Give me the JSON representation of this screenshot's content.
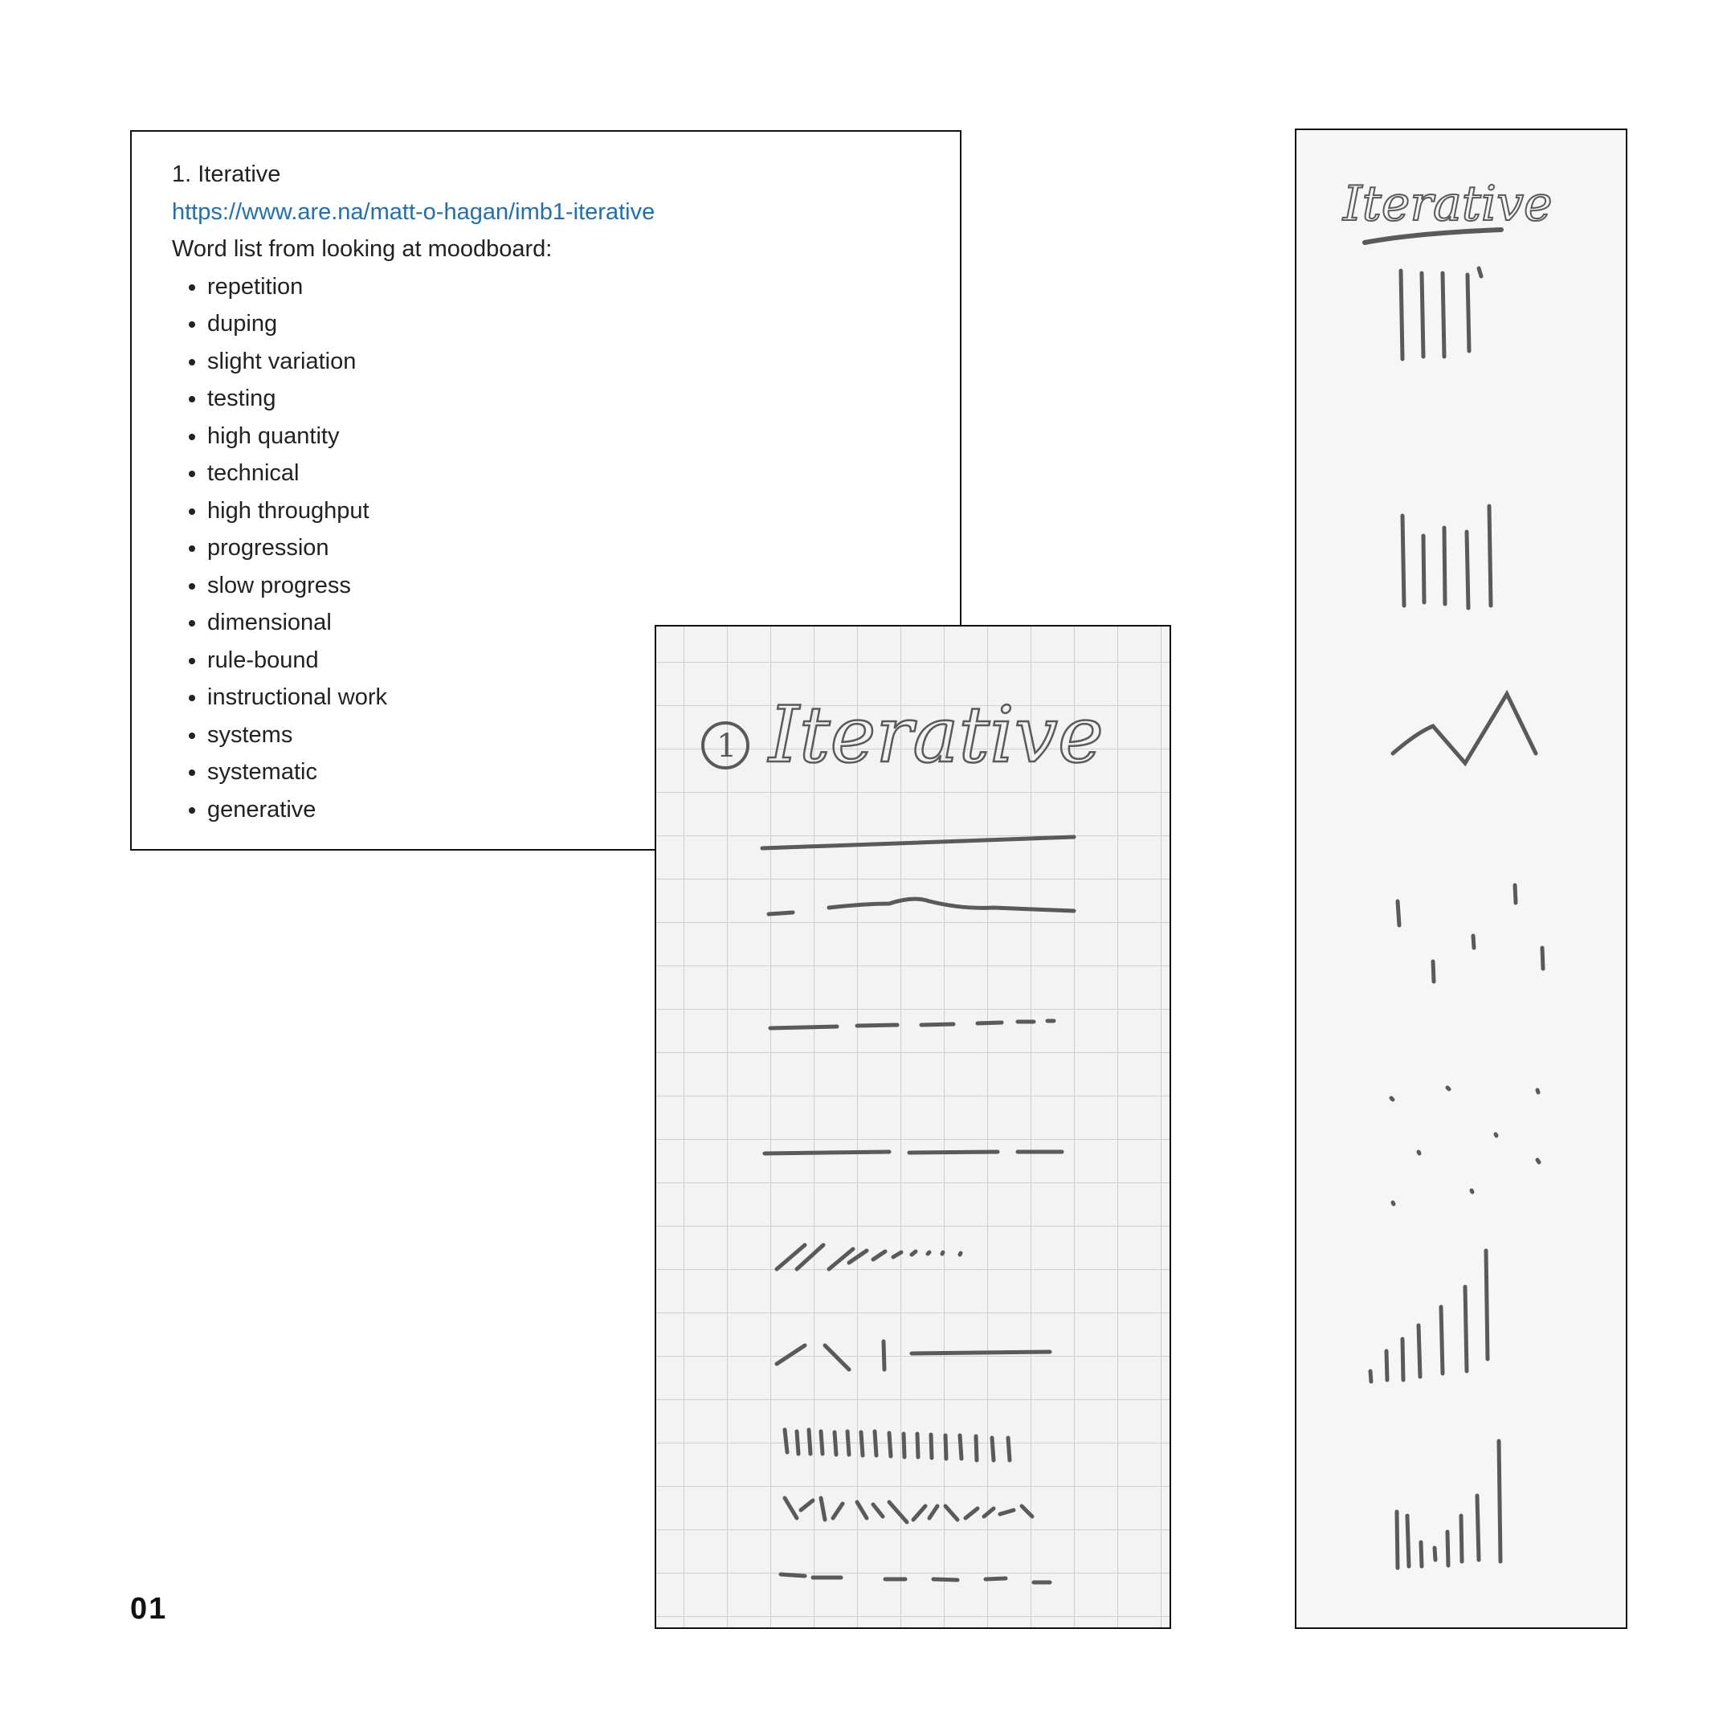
{
  "notes": {
    "title": "1. Iterative",
    "link": "https://www.are.na/matt-o-hagan/imb1-iterative",
    "intro": "Word list from looking at moodboard:",
    "words": [
      "repetition",
      "duping",
      "slight variation",
      "testing",
      "high quantity",
      "technical",
      "high throughput",
      "progression",
      "slow progress",
      "dimensional",
      "rule-bound",
      "instructional work",
      "systems",
      "systematic",
      "generative"
    ]
  },
  "sketch_grid": {
    "number": "1",
    "heading": "Iterative"
  },
  "sketch_strip": {
    "heading": "Iterative"
  },
  "page_number": "01",
  "colors": {
    "link": "#1f6fb5",
    "pencil": "#5a5a5a",
    "grid": "#cfcfcf"
  }
}
